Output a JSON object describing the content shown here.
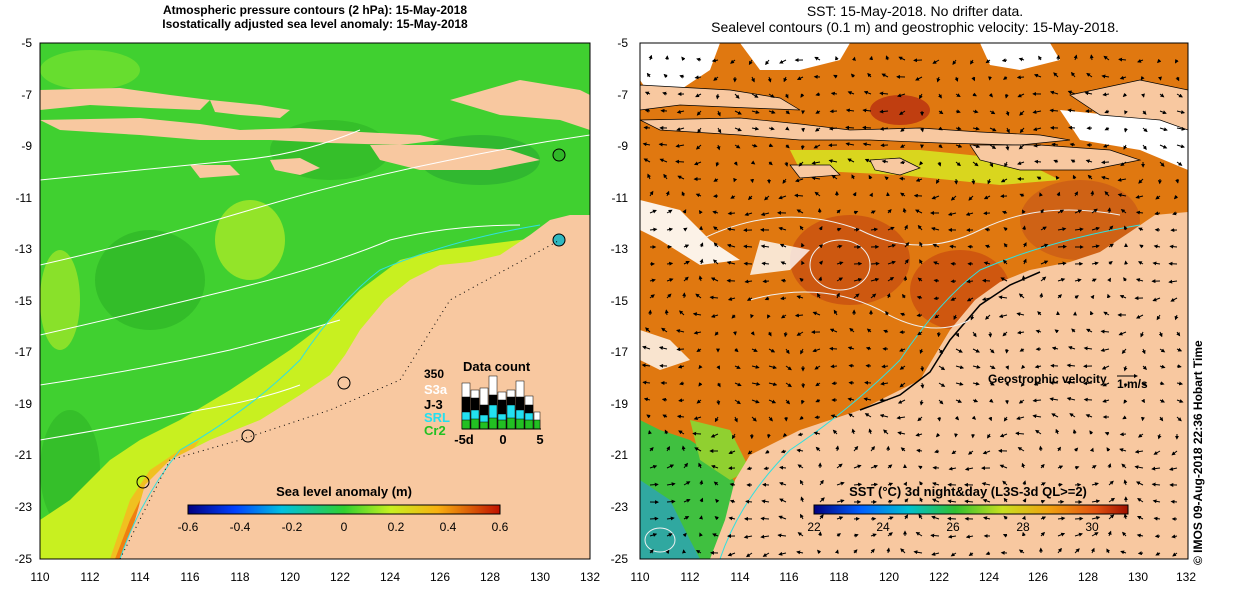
{
  "left_panel": {
    "title_line1": "Atmospheric pressure contours (2 hPa): 15-May-2018",
    "title_line2": "Isostatically adjusted sea level anomaly: 15-May-2018",
    "y_ticks": [
      "-5",
      "-7",
      "-9",
      "-11",
      "-13",
      "-15",
      "-17",
      "-19",
      "-21",
      "-23",
      "-25"
    ],
    "x_ticks": [
      "110",
      "112",
      "114",
      "116",
      "118",
      "120",
      "122",
      "124",
      "126",
      "128",
      "130",
      "132"
    ],
    "colorbar_label": "Sea level anomaly (m)",
    "colorbar_ticks": [
      "-0.6",
      "-0.4",
      "-0.2",
      "0",
      "0.2",
      "0.4",
      "0.6"
    ],
    "data_count": {
      "title": "Data count",
      "max_label": "350",
      "series": [
        {
          "name": "S3a",
          "color": "#ffffff"
        },
        {
          "name": "J-3",
          "color": "#000000"
        },
        {
          "name": "SRL",
          "color": "#22e0f0"
        },
        {
          "name": "Cr2",
          "color": "#22c022"
        }
      ],
      "x_labels": [
        "-5d",
        "0",
        "5"
      ]
    }
  },
  "right_panel": {
    "title_line1": "SST: 15-May-2018. No drifter data.",
    "title_line2": "Sealevel contours (0.1 m) and geostrophic velocity: 15-May-2018.",
    "y_ticks": [
      "-5",
      "-7",
      "-9",
      "-11",
      "-13",
      "-15",
      "-17",
      "-19",
      "-21",
      "-23",
      "-25"
    ],
    "x_ticks": [
      "110",
      "112",
      "114",
      "116",
      "118",
      "120",
      "122",
      "124",
      "126",
      "128",
      "130",
      "132"
    ],
    "velocity_label": "Geostrophic velocity",
    "velocity_scale": "1 m/s",
    "colorbar_label": "SST (°C) 3d night&day (L3S-3d QL>=2)",
    "colorbar_ticks": [
      "22",
      "24",
      "26",
      "28",
      "30"
    ]
  },
  "credit": "© IMOS 09-Aug-2018 22:36 Hobart Time",
  "colors": {
    "land": "#f8c8a0",
    "ocean_green": "#40d030",
    "shelf_yellow": "#c8f020",
    "sst_orange": "#e07810"
  }
}
